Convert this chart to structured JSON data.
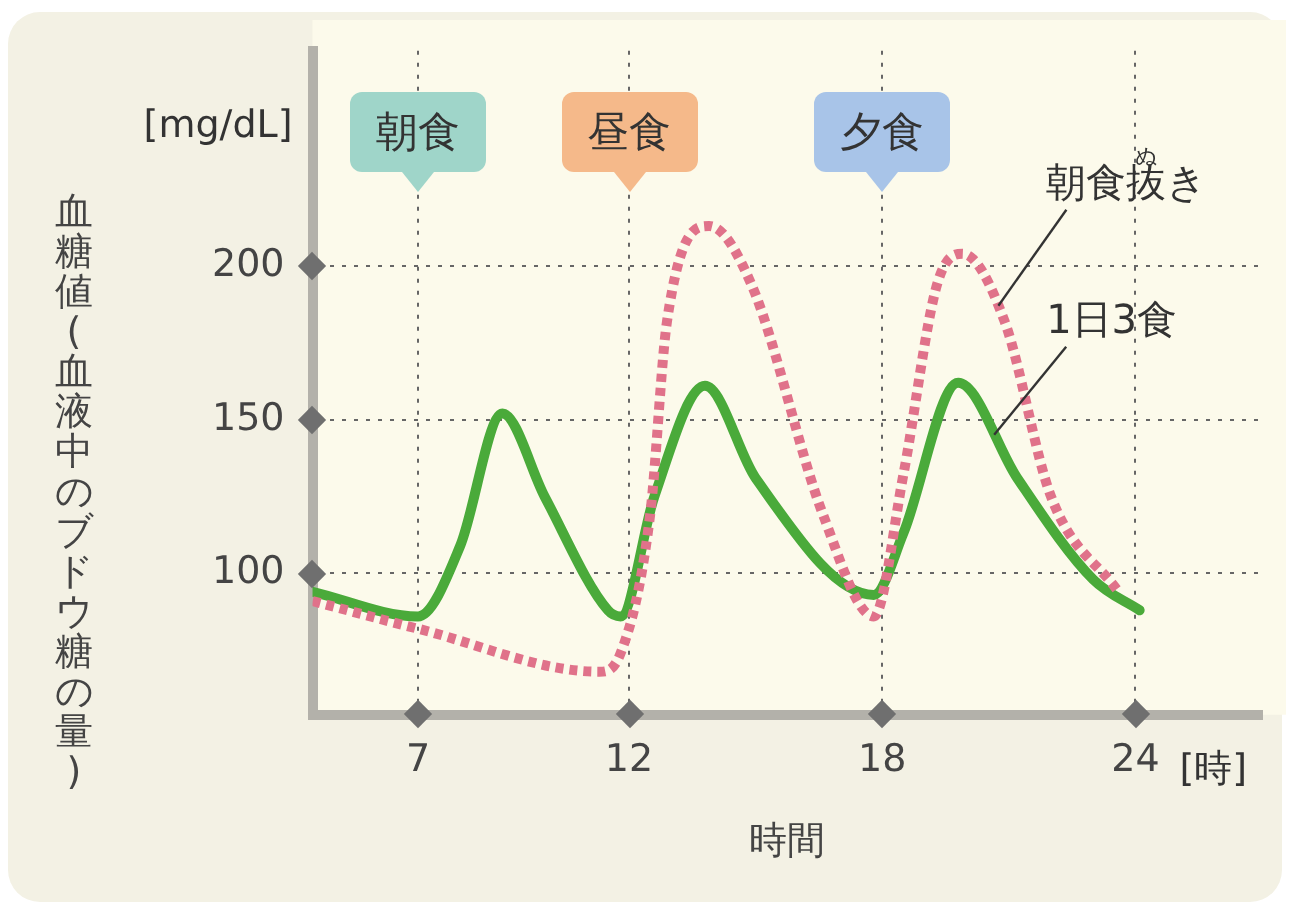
{
  "chart_data": {
    "type": "line",
    "xlabel": "時間",
    "ylabel": "血糖値(血液中のブドウ糖の量)",
    "xlim": [
      4.5,
      27
    ],
    "xticks": [
      7,
      12,
      18,
      24
    ],
    "ylim": [
      54,
      270
    ],
    "yticks": [
      100,
      150,
      200
    ],
    "grid": true,
    "marker": "none",
    "legend": false,
    "annotations": [
      "[mg/dL]",
      "[時]",
      "ぬ",
      "朝食",
      "昼食",
      "夕食"
    ],
    "series": [
      {
        "name": "朝食抜き",
        "color": "#e0728a",
        "line_style": "dotted",
        "x": [
          4.5,
          7,
          11.3,
          11.8,
          12.5,
          12.9,
          13.9,
          14.9,
          16.6,
          17.8,
          18.5,
          19.3,
          19.9,
          20.9,
          22,
          23.6
        ],
        "values": [
          91,
          82,
          68,
          74,
          119,
          182,
          213,
          194,
          119,
          86,
          132,
          194,
          204,
          182,
          125,
          94
        ]
      },
      {
        "name": "1日3食",
        "color": "#4aaa3a",
        "line_style": "solid",
        "x": [
          4.5,
          7,
          8,
          9,
          10,
          11.5,
          11.8,
          12.6,
          13.8,
          15,
          17.8,
          18.5,
          19.8,
          21.2,
          23,
          24.1
        ],
        "values": [
          94,
          86,
          109,
          152,
          125,
          88,
          86,
          125,
          161,
          131,
          93,
          113,
          162,
          131,
          98,
          88
        ]
      }
    ]
  }
}
